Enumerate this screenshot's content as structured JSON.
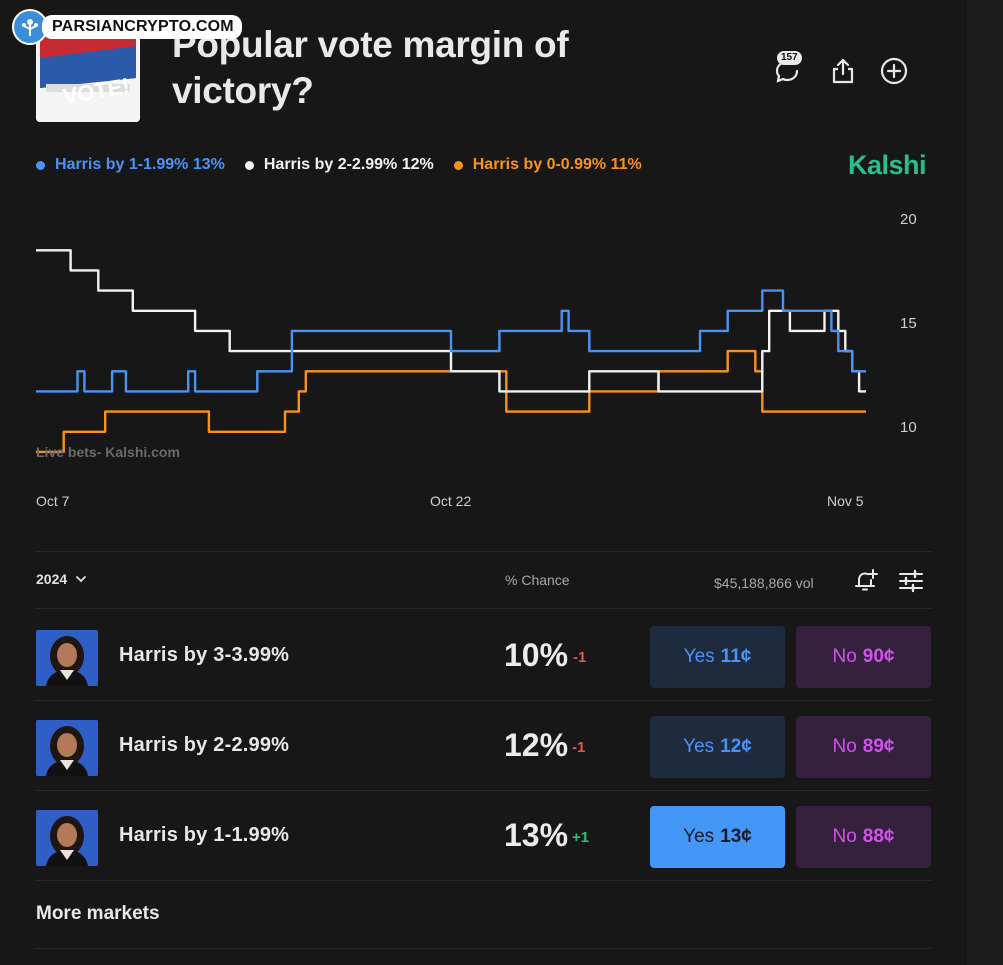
{
  "watermark": {
    "text": "PARSIANCRYPTO.COM"
  },
  "header": {
    "thumbnail_text": "VOTE!",
    "title": "Popular vote margin of victory?",
    "comment_count": "157",
    "icons": [
      "comments-icon",
      "share-icon",
      "add-icon"
    ]
  },
  "legend": [
    {
      "label": "Harris by 1-1.99% 13%",
      "color": "#4a93f5"
    },
    {
      "label": "Harris by 2-2.99% 12%",
      "color": "#f2f2f2"
    },
    {
      "label": "Harris by 0-0.99% 11%",
      "color": "#f7931a"
    }
  ],
  "brand": {
    "name": "Kalshi",
    "color": "#28c08a"
  },
  "chart_data": {
    "type": "line",
    "title": "Popular vote margin of victory?",
    "xlabel": "",
    "ylabel": "",
    "x_ticks": [
      "Oct 7",
      "Oct 22",
      "Nov 5"
    ],
    "y_ticks": [
      "20",
      "15",
      "10"
    ],
    "ylim": [
      8.5,
      20.5
    ],
    "watermark": "Live bets- Kalshi.com",
    "x": [
      0,
      1,
      2,
      3,
      4,
      5,
      6,
      7,
      8,
      9,
      10,
      11,
      12,
      13,
      14,
      15,
      16,
      17,
      18,
      19,
      20,
      21,
      22,
      23,
      24,
      25,
      26,
      27,
      28,
      29,
      30,
      31,
      32,
      33,
      34,
      35,
      36,
      37,
      38,
      39,
      40,
      41,
      42,
      43,
      44,
      45,
      46,
      47,
      48,
      49,
      50,
      51,
      52,
      53,
      54,
      55,
      56,
      57,
      58,
      59,
      60,
      61,
      62,
      63,
      64,
      65,
      66,
      67,
      68,
      69,
      70,
      71,
      72,
      73,
      74,
      75,
      76,
      77,
      78,
      79,
      80,
      81,
      82,
      83,
      84,
      85,
      86,
      87,
      88,
      89,
      90,
      91,
      92,
      93,
      94,
      95,
      96,
      97,
      98,
      99,
      100,
      101,
      102,
      103,
      104,
      105,
      106,
      107,
      108,
      109,
      110,
      111,
      112,
      113,
      114,
      115,
      116,
      117,
      118,
      119,
      120
    ],
    "series": [
      {
        "name": "Harris by 1-1.99%",
        "color": "#4a93f5",
        "values": [
          12,
          12,
          12,
          12,
          12,
          12,
          13,
          12,
          12,
          12,
          12,
          13,
          13,
          12,
          12,
          12,
          12,
          12,
          12,
          12,
          12,
          12,
          13,
          12,
          12,
          12,
          12,
          12,
          12,
          12,
          12,
          12,
          13,
          13,
          13,
          13,
          13,
          15,
          15,
          15,
          15,
          15,
          15,
          15,
          15,
          15,
          15,
          15,
          15,
          15,
          15,
          15,
          15,
          15,
          15,
          15,
          15,
          15,
          15,
          15,
          14,
          14,
          14,
          14,
          14,
          14,
          14,
          15,
          15,
          15,
          15,
          15,
          15,
          15,
          15,
          15,
          16,
          15,
          15,
          15,
          14,
          14,
          14,
          14,
          14,
          14,
          14,
          14,
          14,
          14,
          14,
          14,
          14,
          14,
          14,
          14,
          15,
          15,
          15,
          15,
          16,
          16,
          16,
          16,
          16,
          17,
          17,
          17,
          16,
          16,
          16,
          16,
          16,
          16,
          16,
          15,
          14,
          14,
          13,
          13,
          13
        ]
      },
      {
        "name": "Harris by 2-2.99%",
        "color": "#f2f2f2",
        "values": [
          19,
          19,
          19,
          19,
          19,
          18,
          18,
          18,
          18,
          17,
          17,
          17,
          17,
          17,
          16,
          16,
          16,
          16,
          16,
          16,
          16,
          16,
          16,
          15,
          15,
          15,
          15,
          15,
          14,
          14,
          14,
          14,
          14,
          14,
          14,
          14,
          14,
          14,
          14,
          14,
          14,
          14,
          14,
          14,
          14,
          14,
          14,
          14,
          14,
          14,
          14,
          14,
          14,
          14,
          14,
          14,
          14,
          14,
          14,
          14,
          13,
          13,
          13,
          13,
          13,
          13,
          13,
          12,
          12,
          12,
          12,
          12,
          12,
          12,
          12,
          12,
          12,
          12,
          12,
          12,
          13,
          13,
          13,
          13,
          13,
          13,
          13,
          13,
          13,
          13,
          12,
          12,
          12,
          12,
          12,
          12,
          12,
          12,
          12,
          12,
          12,
          12,
          12,
          12,
          12,
          14,
          16,
          16,
          16,
          15,
          15,
          15,
          15,
          15,
          16,
          16,
          15,
          14,
          13,
          12,
          12
        ]
      },
      {
        "name": "Harris by 0-0.99%",
        "color": "#f7931a",
        "values": [
          9,
          9,
          9,
          9,
          10,
          10,
          10,
          10,
          10,
          10,
          11,
          11,
          11,
          11,
          11,
          11,
          11,
          11,
          11,
          11,
          11,
          11,
          11,
          11,
          11,
          10,
          10,
          10,
          10,
          10,
          10,
          10,
          10,
          10,
          10,
          10,
          11,
          11,
          12,
          13,
          13,
          13,
          13,
          13,
          13,
          13,
          13,
          13,
          13,
          13,
          13,
          13,
          13,
          13,
          13,
          13,
          13,
          13,
          13,
          13,
          13,
          13,
          13,
          13,
          13,
          13,
          13,
          13,
          11,
          11,
          11,
          11,
          11,
          11,
          11,
          11,
          11,
          11,
          11,
          11,
          12,
          12,
          12,
          12,
          12,
          12,
          12,
          12,
          12,
          12,
          13,
          13,
          13,
          13,
          13,
          13,
          13,
          13,
          13,
          13,
          14,
          14,
          14,
          14,
          13,
          11,
          11,
          11,
          11,
          11,
          11,
          11,
          11,
          11,
          11,
          11,
          11,
          11,
          11,
          11,
          11
        ]
      }
    ]
  },
  "markets": {
    "year": "2024",
    "chance_header": "% Chance",
    "volume": "$45,188,866 vol",
    "rows": [
      {
        "label": "Harris by 3-3.99%",
        "pct": "10%",
        "change": "-1",
        "change_dir": "down",
        "yes": "11¢",
        "no": "90¢",
        "yes_active": false
      },
      {
        "label": "Harris by 2-2.99%",
        "pct": "12%",
        "change": "-1",
        "change_dir": "down",
        "yes": "12¢",
        "no": "89¢",
        "yes_active": false
      },
      {
        "label": "Harris by 1-1.99%",
        "pct": "13%",
        "change": "+1",
        "change_dir": "up",
        "yes": "13¢",
        "no": "88¢",
        "yes_active": true
      }
    ],
    "yes_label": "Yes",
    "no_label": "No",
    "more_label": "More markets"
  }
}
